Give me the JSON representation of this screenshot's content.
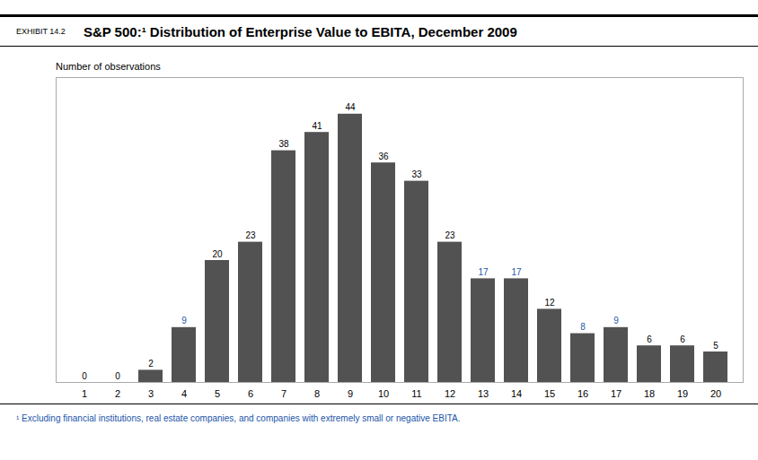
{
  "chart_data": {
    "type": "bar",
    "title": "S&P 500:¹  Distribution of Enterprise Value to EBITA, December 2009",
    "annotations": [
      "EXHIBIT 14.2",
      "¹ Excluding financial institutions, real estate companies, and companies with extremely small or negative EBITA."
    ],
    "ylabel": "Number of observations",
    "categories": [
      1,
      2,
      3,
      4,
      5,
      6,
      7,
      8,
      9,
      10,
      11,
      12,
      13,
      14,
      15,
      16,
      17,
      18,
      19,
      20
    ],
    "values": [
      0,
      0,
      2,
      9,
      20,
      23,
      38,
      41,
      44,
      36,
      33,
      23,
      17,
      17,
      12,
      8,
      9,
      6,
      6,
      5
    ],
    "color": "#525252",
    "label_colors": [
      "#000000",
      "#000000",
      "#000000",
      "#2255aa",
      "#000000",
      "#000000",
      "#000000",
      "#000000",
      "#000000",
      "#000000",
      "#000000",
      "#000000",
      "#2255aa",
      "#2255aa",
      "#000000",
      "#2255aa",
      "#2255aa",
      "#000000",
      "#000000",
      "#000000"
    ],
    "ylim": [
      0,
      50
    ],
    "grid": false,
    "data_labels": true,
    "tick_labels": "x"
  }
}
